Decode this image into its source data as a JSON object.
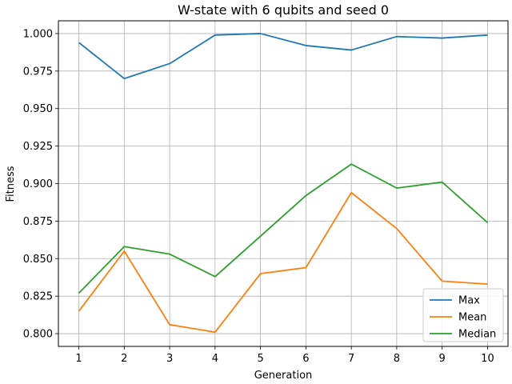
{
  "chart_data": {
    "type": "line",
    "title": "W-state with 6 qubits and seed 0",
    "xlabel": "Generation",
    "ylabel": "Fitness",
    "x": [
      1,
      2,
      3,
      4,
      5,
      6,
      7,
      8,
      9,
      10
    ],
    "xlim": [
      0.55,
      10.45
    ],
    "ylim": [
      0.7915,
      1.0085
    ],
    "yticks": [
      0.8,
      0.825,
      0.85,
      0.875,
      0.9,
      0.925,
      0.95,
      0.975,
      1.0
    ],
    "ytick_labels": [
      "0.800",
      "0.825",
      "0.850",
      "0.875",
      "0.900",
      "0.925",
      "0.950",
      "0.975",
      "1.000"
    ],
    "grid": true,
    "legend_position": "lower-right",
    "series": [
      {
        "name": "Max",
        "color": "#1f77b4",
        "values": [
          0.994,
          0.97,
          0.98,
          0.999,
          1.0,
          0.992,
          0.989,
          0.998,
          0.997,
          0.999
        ]
      },
      {
        "name": "Mean",
        "color": "#ff7f0e",
        "values": [
          0.815,
          0.855,
          0.806,
          0.801,
          0.84,
          0.844,
          0.894,
          0.87,
          0.835,
          0.833
        ]
      },
      {
        "name": "Median",
        "color": "#2ca02c",
        "values": [
          0.827,
          0.858,
          0.853,
          0.838,
          0.865,
          0.892,
          0.913,
          0.897,
          0.901,
          0.874
        ]
      }
    ]
  }
}
